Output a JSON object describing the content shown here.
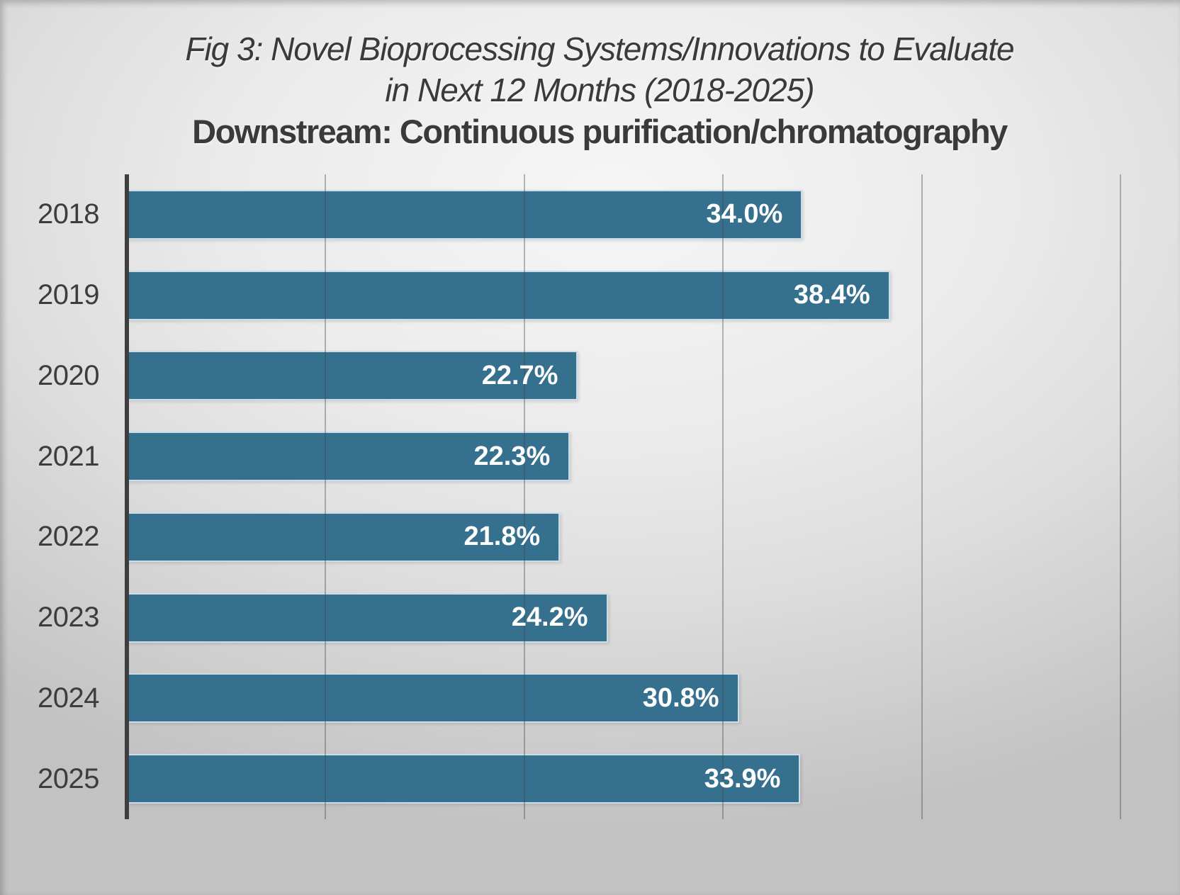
{
  "chart": {
    "title_line1": "Fig 3: Novel Bioprocessing Systems/Innovations to Evaluate",
    "title_line2": "in Next 12 Months (2018-2025)",
    "subtitle": "Downstream: Continuous purification/chromatography"
  },
  "chart_data": {
    "type": "bar",
    "orientation": "horizontal",
    "title": "Fig 3: Novel Bioprocessing Systems/Innovations to Evaluate in Next 12 Months (2018-2025)",
    "subtitle": "Downstream: Continuous purification/chromatography",
    "categories": [
      "2018",
      "2019",
      "2020",
      "2021",
      "2022",
      "2023",
      "2024",
      "2025"
    ],
    "values": [
      34.0,
      38.4,
      22.7,
      22.3,
      21.8,
      24.2,
      30.8,
      33.9
    ],
    "value_labels": [
      "34.0%",
      "38.4%",
      "22.7%",
      "22.3%",
      "21.8%",
      "24.2%",
      "30.8%",
      "33.9%"
    ],
    "xlabel": "",
    "ylabel": "",
    "xlim": [
      0,
      53
    ],
    "xticks": [
      0,
      10,
      20,
      30,
      40,
      50
    ],
    "grid": "vertical-only",
    "legend": "none",
    "value_label_position": "inside-end",
    "colors": {
      "bar": "#35718F",
      "bar_border": "#CADDE8",
      "axis": "#3E3E3E",
      "gridline": "rgba(64,64,64,0.36)",
      "value_text": "#FFFFFF",
      "category_text": "#3D3D3D",
      "title_text": "#3A3A3A",
      "background_light": "#F6F6F6",
      "background_dark": "#C2C2C2"
    }
  }
}
